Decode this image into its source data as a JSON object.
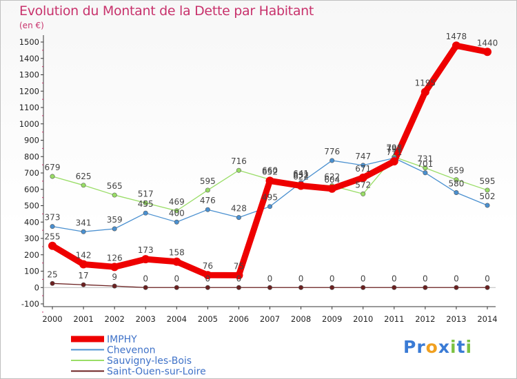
{
  "header": {
    "title": "Evolution du Montant de la Dette par Habitant",
    "subtitle": "(en €)"
  },
  "logo": {
    "text": "Proxiti",
    "letters": [
      "P",
      "r",
      "o",
      "x",
      "i",
      "t",
      "i"
    ],
    "colors": [
      "#3a7bd5",
      "#3a7bd5",
      "#f0a020",
      "#3a7bd5",
      "#7cc242",
      "#3a7bd5",
      "#7cc242"
    ]
  },
  "chart_data": {
    "type": "line",
    "x": [
      "2000",
      "2001",
      "2002",
      "2003",
      "2004",
      "2005",
      "2006",
      "2007",
      "2008",
      "2009",
      "2010",
      "2011",
      "2012",
      "2013",
      "2014"
    ],
    "ylim": [
      -100,
      1500
    ],
    "yticks": [
      -100,
      0,
      100,
      200,
      300,
      400,
      500,
      600,
      700,
      800,
      900,
      1000,
      1100,
      1200,
      1300,
      1400,
      1500
    ],
    "grid": false,
    "legend_position": "bottom-left",
    "series": [
      {
        "name": "IMPHY",
        "color": "#ee0000",
        "values": [
          255,
          142,
          126,
          173,
          158,
          76,
          75,
          652,
          622,
          604,
          671,
          771,
          1195,
          1478,
          1440
        ],
        "labels": [
          "255",
          "142",
          "126",
          "173",
          "158",
          "76",
          "75",
          "652",
          "622",
          "604",
          "671",
          "771",
          "1195",
          "1478",
          "1440"
        ]
      },
      {
        "name": "Chevenon",
        "color": "#4a90d0",
        "values": [
          373,
          341,
          359,
          455,
          400,
          476,
          428,
          495,
          641,
          776,
          747,
          791,
          701,
          580,
          502
        ],
        "labels": [
          "373",
          "341",
          "359",
          "455",
          "400",
          "476",
          "428",
          "495",
          "641",
          "776",
          "747",
          "791",
          "701",
          "580",
          "502"
        ]
      },
      {
        "name": "Sauvigny-les-Bois",
        "color": "#99dd66",
        "values": [
          679,
          625,
          565,
          517,
          469,
          595,
          716,
          660,
          632,
          622,
          572,
          798,
          731,
          659,
          595
        ],
        "labels": [
          "679",
          "625",
          "565",
          "517",
          "469",
          "595",
          "716",
          "660",
          "632",
          "622",
          "572",
          "798",
          "731",
          "659",
          "595"
        ]
      },
      {
        "name": "Saint-Ouen-sur-Loire",
        "color": "#6b2020",
        "values": [
          25,
          17,
          9,
          0,
          0,
          0,
          0,
          0,
          0,
          0,
          0,
          0,
          0,
          0,
          0
        ],
        "labels": [
          "25",
          "17",
          "9",
          "0",
          "0",
          "0",
          "0",
          "0",
          "0",
          "0",
          "0",
          "0",
          "0",
          "0",
          "0"
        ]
      }
    ]
  }
}
